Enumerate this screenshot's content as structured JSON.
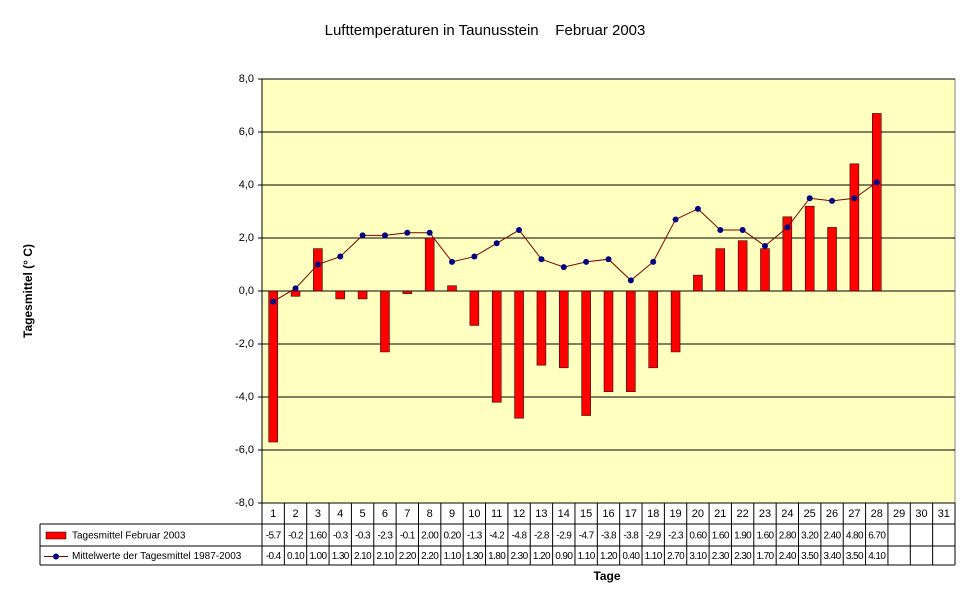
{
  "chart_data": {
    "type": "bar_line",
    "title": "Lufttemperaturen in Taunusstein    Februar 2003",
    "y_label": "Tagesmittel (° C)",
    "x_label": "Tage",
    "categories": [
      "1",
      "2",
      "3",
      "4",
      "5",
      "6",
      "7",
      "8",
      "9",
      "10",
      "11",
      "12",
      "13",
      "14",
      "15",
      "16",
      "17",
      "18",
      "19",
      "20",
      "21",
      "22",
      "23",
      "24",
      "25",
      "26",
      "27",
      "28",
      "29",
      "30",
      "31"
    ],
    "series": [
      {
        "name": "Tagesmittel Februar 2003",
        "type": "bar",
        "color": "#ff0000",
        "values": [
          -5.7,
          -0.2,
          1.6,
          -0.3,
          -0.3,
          -2.3,
          -0.1,
          2.0,
          0.2,
          -1.3,
          -4.2,
          -4.8,
          -2.8,
          -2.9,
          -4.7,
          -3.8,
          -3.8,
          -2.9,
          -2.3,
          0.6,
          1.6,
          1.9,
          1.6,
          2.8,
          3.2,
          2.4,
          4.8,
          6.7,
          null,
          null,
          null
        ],
        "value_labels": [
          "-5.7",
          "-0.2",
          "1.60",
          "-0.3",
          "-0.3",
          "-2.3",
          "-0.1",
          "2.00",
          "0.20",
          "-1.3",
          "-4.2",
          "-4.8",
          "-2.8",
          "-2.9",
          "-4.7",
          "-3.8",
          "-3.8",
          "-2.9",
          "-2.3",
          "0.60",
          "1.60",
          "1.90",
          "1.60",
          "2.80",
          "3.20",
          "2.40",
          "4.80",
          "6.70",
          null,
          null,
          null
        ]
      },
      {
        "name": "Mittelwerte der Tagesmittel 1987-2003",
        "type": "line",
        "color": "#800000",
        "marker_color": "#000080",
        "values": [
          -0.4,
          0.1,
          1.0,
          1.3,
          2.1,
          2.1,
          2.2,
          2.2,
          1.1,
          1.3,
          1.8,
          2.3,
          1.2,
          0.9,
          1.1,
          1.2,
          0.4,
          1.1,
          2.7,
          3.1,
          2.3,
          2.3,
          1.7,
          2.4,
          3.5,
          3.4,
          3.5,
          4.1,
          null,
          null,
          null
        ],
        "value_labels": [
          "-0.4",
          "0.10",
          "1.00",
          "1.30",
          "2.10",
          "2.10",
          "2.20",
          "2.20",
          "1.10",
          "1.30",
          "1.80",
          "2.30",
          "1.20",
          "0.90",
          "1.10",
          "1.20",
          "0.40",
          "1.10",
          "2.70",
          "3.10",
          "2.30",
          "2.30",
          "1.70",
          "2.40",
          "3.50",
          "3.40",
          "3.50",
          "4.10",
          null,
          null,
          null
        ]
      }
    ],
    "ylim": [
      -8,
      8
    ],
    "yticks": [
      {
        "value": -8,
        "label": "-8,0"
      },
      {
        "value": -6,
        "label": "-6,0"
      },
      {
        "value": -4,
        "label": "-4,0"
      },
      {
        "value": -2,
        "label": "-2,0"
      },
      {
        "value": 0,
        "label": "0,0"
      },
      {
        "value": 2,
        "label": "2,0"
      },
      {
        "value": 4,
        "label": "4,0"
      },
      {
        "value": 6,
        "label": "6,0"
      },
      {
        "value": 8,
        "label": "8,0"
      }
    ],
    "grid": true,
    "plot_background": "#ffffc0"
  }
}
